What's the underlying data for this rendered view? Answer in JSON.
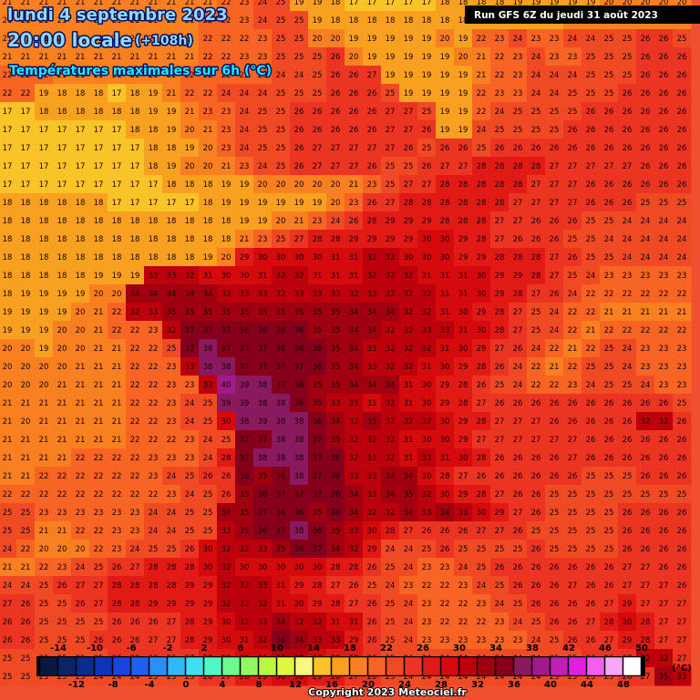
{
  "header": {
    "date": "lundi 4 septembre 2023",
    "time": "20:00 locale",
    "lead": "(+108h)",
    "subtitle": "Températures maximales sur 6h (°C)",
    "run": "Run GFS 6Z du jeudi 31 août 2023"
  },
  "grid": {
    "values": [
      [
        21,
        21,
        21,
        21,
        21,
        21,
        21,
        21,
        21,
        21,
        21,
        21,
        22,
        23,
        24,
        25,
        19,
        19,
        18,
        17,
        17,
        17,
        17,
        17,
        18,
        18,
        18,
        18,
        19,
        19,
        19,
        19,
        19,
        20,
        20,
        20,
        20,
        20
      ],
      [
        21,
        21,
        21,
        21,
        21,
        21,
        21,
        21,
        21,
        21,
        21,
        22,
        22,
        23,
        24,
        25,
        25,
        19,
        18,
        18,
        18,
        18,
        18,
        18,
        18,
        18,
        19,
        19,
        19,
        19,
        19,
        20,
        20,
        20,
        20,
        20,
        20,
        20
      ],
      [
        21,
        21,
        21,
        21,
        21,
        21,
        21,
        21,
        21,
        21,
        21,
        22,
        22,
        22,
        23,
        25,
        25,
        20,
        20,
        19,
        19,
        19,
        19,
        19,
        20,
        19,
        22,
        23,
        24,
        23,
        23,
        24,
        24,
        25,
        25,
        26,
        26,
        25
      ],
      [
        21,
        21,
        21,
        21,
        21,
        21,
        21,
        21,
        21,
        21,
        21,
        22,
        22,
        23,
        23,
        25,
        25,
        25,
        26,
        20,
        19,
        19,
        19,
        19,
        19,
        20,
        21,
        22,
        23,
        24,
        23,
        23,
        25,
        25,
        25,
        26,
        26,
        26
      ],
      [
        22,
        22,
        22,
        21,
        21,
        21,
        21,
        21,
        21,
        21,
        22,
        22,
        22,
        22,
        23,
        24,
        24,
        25,
        26,
        26,
        27,
        19,
        19,
        19,
        19,
        19,
        21,
        22,
        23,
        24,
        24,
        24,
        25,
        25,
        25,
        26,
        26,
        26
      ],
      [
        22,
        22,
        19,
        18,
        18,
        18,
        17,
        18,
        19,
        21,
        22,
        22,
        24,
        24,
        24,
        25,
        25,
        25,
        26,
        26,
        26,
        25,
        19,
        19,
        19,
        19,
        22,
        23,
        23,
        24,
        24,
        25,
        25,
        25,
        26,
        26,
        26,
        26
      ],
      [
        17,
        17,
        18,
        18,
        18,
        18,
        18,
        18,
        19,
        19,
        21,
        23,
        23,
        24,
        25,
        25,
        26,
        26,
        26,
        26,
        26,
        27,
        27,
        25,
        19,
        19,
        22,
        24,
        25,
        25,
        25,
        25,
        26,
        26,
        26,
        26,
        26,
        26
      ],
      [
        17,
        17,
        17,
        17,
        17,
        17,
        17,
        18,
        18,
        19,
        20,
        21,
        23,
        24,
        25,
        25,
        26,
        26,
        26,
        26,
        26,
        27,
        27,
        26,
        19,
        19,
        24,
        25,
        25,
        25,
        25,
        26,
        26,
        26,
        26,
        26,
        26,
        26
      ],
      [
        17,
        17,
        17,
        17,
        17,
        17,
        17,
        17,
        18,
        18,
        19,
        20,
        23,
        24,
        25,
        25,
        26,
        27,
        27,
        27,
        27,
        27,
        26,
        25,
        26,
        26,
        25,
        26,
        26,
        26,
        26,
        26,
        26,
        26,
        26,
        26,
        26,
        26
      ],
      [
        17,
        17,
        17,
        17,
        17,
        17,
        17,
        17,
        18,
        19,
        20,
        20,
        21,
        23,
        24,
        25,
        26,
        27,
        27,
        27,
        26,
        25,
        25,
        26,
        27,
        27,
        28,
        28,
        28,
        28,
        27,
        27,
        27,
        27,
        27,
        26,
        26,
        26
      ],
      [
        17,
        17,
        17,
        17,
        17,
        17,
        17,
        17,
        17,
        18,
        18,
        18,
        19,
        19,
        20,
        20,
        20,
        20,
        20,
        21,
        23,
        25,
        27,
        27,
        28,
        28,
        28,
        28,
        28,
        27,
        27,
        27,
        26,
        26,
        26,
        26,
        26,
        26
      ],
      [
        18,
        18,
        18,
        18,
        18,
        18,
        17,
        17,
        17,
        17,
        17,
        18,
        19,
        19,
        19,
        19,
        19,
        19,
        20,
        23,
        26,
        27,
        28,
        28,
        28,
        28,
        28,
        28,
        27,
        27,
        27,
        27,
        26,
        26,
        26,
        25,
        25,
        25
      ],
      [
        18,
        18,
        18,
        18,
        18,
        18,
        18,
        18,
        18,
        18,
        18,
        18,
        18,
        19,
        19,
        20,
        21,
        23,
        24,
        26,
        28,
        29,
        29,
        29,
        28,
        28,
        28,
        27,
        27,
        26,
        26,
        26,
        25,
        25,
        24,
        24,
        24,
        24
      ],
      [
        18,
        18,
        18,
        18,
        18,
        18,
        18,
        18,
        18,
        18,
        18,
        18,
        18,
        21,
        23,
        25,
        27,
        28,
        28,
        29,
        29,
        29,
        29,
        30,
        30,
        29,
        28,
        27,
        26,
        26,
        26,
        25,
        25,
        24,
        24,
        24,
        24,
        24
      ],
      [
        18,
        18,
        18,
        18,
        18,
        18,
        18,
        18,
        18,
        18,
        18,
        19,
        20,
        29,
        30,
        30,
        30,
        30,
        31,
        31,
        32,
        32,
        30,
        30,
        30,
        29,
        29,
        28,
        28,
        28,
        27,
        26,
        25,
        25,
        24,
        24,
        24,
        24
      ],
      [
        18,
        18,
        18,
        18,
        18,
        19,
        19,
        19,
        33,
        33,
        32,
        31,
        30,
        30,
        31,
        32,
        32,
        31,
        31,
        31,
        32,
        32,
        32,
        31,
        31,
        31,
        30,
        29,
        29,
        28,
        27,
        25,
        24,
        23,
        23,
        23,
        23,
        23
      ],
      [
        18,
        19,
        19,
        19,
        19,
        20,
        20,
        34,
        34,
        34,
        34,
        34,
        33,
        33,
        33,
        32,
        33,
        33,
        33,
        32,
        33,
        32,
        32,
        32,
        31,
        31,
        30,
        29,
        28,
        27,
        26,
        24,
        22,
        22,
        22,
        22,
        22,
        22
      ],
      [
        19,
        19,
        19,
        19,
        20,
        21,
        22,
        32,
        33,
        35,
        35,
        35,
        35,
        35,
        35,
        35,
        35,
        35,
        35,
        34,
        34,
        34,
        32,
        32,
        31,
        30,
        29,
        28,
        27,
        25,
        24,
        22,
        22,
        21,
        21,
        21,
        21,
        21
      ],
      [
        19,
        19,
        19,
        20,
        20,
        21,
        22,
        22,
        23,
        32,
        37,
        37,
        37,
        36,
        36,
        36,
        36,
        35,
        35,
        34,
        34,
        32,
        32,
        33,
        33,
        31,
        30,
        28,
        27,
        25,
        24,
        22,
        21,
        22,
        22,
        22,
        22,
        22
      ],
      [
        20,
        20,
        19,
        20,
        20,
        21,
        21,
        22,
        22,
        25,
        37,
        38,
        37,
        37,
        37,
        36,
        36,
        36,
        35,
        34,
        33,
        32,
        32,
        32,
        31,
        30,
        29,
        27,
        26,
        24,
        22,
        21,
        22,
        25,
        24,
        23,
        23,
        23
      ],
      [
        20,
        20,
        20,
        20,
        21,
        21,
        21,
        22,
        22,
        23,
        33,
        38,
        38,
        37,
        37,
        37,
        37,
        36,
        35,
        34,
        33,
        32,
        32,
        31,
        30,
        29,
        28,
        26,
        24,
        22,
        21,
        22,
        25,
        25,
        24,
        23,
        23,
        23
      ],
      [
        20,
        20,
        20,
        21,
        21,
        21,
        21,
        22,
        22,
        23,
        23,
        33,
        40,
        39,
        38,
        37,
        36,
        35,
        35,
        34,
        34,
        34,
        31,
        30,
        29,
        28,
        26,
        25,
        24,
        22,
        22,
        23,
        24,
        25,
        25,
        24,
        23,
        23
      ],
      [
        21,
        21,
        21,
        21,
        21,
        21,
        21,
        22,
        22,
        23,
        24,
        25,
        39,
        39,
        38,
        38,
        36,
        35,
        33,
        33,
        31,
        32,
        31,
        30,
        29,
        28,
        27,
        26,
        26,
        26,
        26,
        26,
        26,
        26,
        26,
        26,
        26,
        25
      ],
      [
        21,
        20,
        21,
        21,
        21,
        21,
        21,
        22,
        22,
        23,
        24,
        25,
        30,
        38,
        39,
        38,
        38,
        36,
        34,
        32,
        35,
        32,
        32,
        32,
        30,
        29,
        28,
        27,
        27,
        27,
        26,
        26,
        26,
        26,
        26,
        32,
        32,
        26
      ],
      [
        21,
        21,
        21,
        21,
        21,
        21,
        21,
        22,
        22,
        22,
        23,
        24,
        25,
        37,
        37,
        38,
        38,
        37,
        35,
        32,
        32,
        32,
        31,
        30,
        30,
        29,
        27,
        27,
        27,
        27,
        27,
        27,
        26,
        26,
        26,
        26,
        26,
        26
      ],
      [
        21,
        21,
        21,
        21,
        22,
        22,
        22,
        22,
        23,
        23,
        23,
        24,
        28,
        37,
        38,
        38,
        38,
        37,
        36,
        32,
        33,
        32,
        31,
        33,
        31,
        30,
        28,
        26,
        26,
        26,
        26,
        27,
        26,
        26,
        26,
        26,
        26,
        26
      ],
      [
        21,
        21,
        22,
        22,
        22,
        22,
        22,
        22,
        23,
        24,
        25,
        26,
        26,
        36,
        35,
        36,
        38,
        37,
        36,
        33,
        33,
        34,
        34,
        30,
        28,
        27,
        26,
        26,
        26,
        26,
        26,
        26,
        25,
        25,
        25,
        26,
        26,
        26
      ],
      [
        22,
        22,
        22,
        22,
        22,
        22,
        22,
        22,
        22,
        23,
        24,
        25,
        26,
        35,
        36,
        37,
        37,
        37,
        36,
        34,
        33,
        34,
        35,
        32,
        30,
        29,
        28,
        27,
        26,
        26,
        25,
        25,
        25,
        25,
        25,
        25,
        25,
        25
      ],
      [
        25,
        25,
        23,
        23,
        23,
        23,
        23,
        23,
        24,
        24,
        25,
        25,
        34,
        35,
        37,
        36,
        36,
        35,
        36,
        34,
        32,
        32,
        34,
        33,
        34,
        33,
        30,
        29,
        27,
        26,
        25,
        25,
        25,
        25,
        26,
        26,
        26,
        26
      ],
      [
        25,
        25,
        21,
        21,
        22,
        22,
        23,
        23,
        24,
        24,
        25,
        25,
        33,
        35,
        36,
        37,
        38,
        36,
        35,
        33,
        30,
        28,
        27,
        26,
        26,
        26,
        27,
        27,
        26,
        25,
        25,
        25,
        25,
        25,
        26,
        26,
        26,
        26
      ],
      [
        24,
        22,
        20,
        20,
        20,
        22,
        23,
        24,
        25,
        25,
        26,
        30,
        32,
        32,
        33,
        35,
        36,
        37,
        34,
        32,
        29,
        24,
        24,
        25,
        26,
        25,
        25,
        25,
        25,
        26,
        25,
        25,
        25,
        25,
        26,
        26,
        26,
        26
      ],
      [
        21,
        21,
        22,
        23,
        24,
        25,
        26,
        27,
        28,
        28,
        28,
        30,
        32,
        30,
        30,
        30,
        30,
        30,
        28,
        28,
        26,
        25,
        24,
        23,
        23,
        24,
        25,
        26,
        26,
        26,
        26,
        26,
        26,
        26,
        27,
        27,
        26,
        26
      ],
      [
        24,
        24,
        25,
        26,
        27,
        27,
        28,
        28,
        28,
        28,
        29,
        29,
        32,
        32,
        33,
        31,
        29,
        28,
        27,
        26,
        25,
        24,
        23,
        22,
        22,
        23,
        24,
        25,
        26,
        26,
        26,
        27,
        26,
        26,
        27,
        27,
        27,
        26
      ],
      [
        27,
        26,
        25,
        25,
        26,
        27,
        28,
        28,
        29,
        29,
        29,
        29,
        32,
        32,
        32,
        31,
        30,
        29,
        28,
        27,
        26,
        25,
        24,
        23,
        22,
        22,
        23,
        24,
        25,
        26,
        26,
        26,
        26,
        27,
        29,
        27,
        27,
        27
      ],
      [
        26,
        26,
        25,
        25,
        25,
        25,
        26,
        26,
        26,
        27,
        28,
        29,
        30,
        32,
        33,
        34,
        32,
        32,
        31,
        31,
        26,
        25,
        24,
        23,
        22,
        22,
        22,
        23,
        24,
        25,
        26,
        26,
        27,
        28,
        30,
        28,
        27,
        27
      ],
      [
        26,
        26,
        25,
        25,
        25,
        26,
        26,
        26,
        27,
        27,
        28,
        29,
        30,
        31,
        32,
        36,
        34,
        33,
        33,
        29,
        26,
        25,
        24,
        23,
        23,
        23,
        23,
        23,
        23,
        24,
        25,
        26,
        26,
        27,
        29,
        28,
        27,
        27
      ],
      [
        25,
        25,
        25,
        25,
        25,
        25,
        26,
        26,
        26,
        26,
        27,
        28,
        29,
        30,
        31,
        32,
        32,
        30,
        29,
        28,
        26,
        25,
        24,
        24,
        24,
        24,
        24,
        24,
        24,
        24,
        25,
        25,
        26,
        26,
        27,
        32,
        32,
        27
      ],
      [
        25,
        25,
        25,
        25,
        25,
        24,
        24,
        24,
        25,
        25,
        25,
        26,
        27,
        28,
        29,
        30,
        30,
        29,
        28,
        27,
        26,
        25,
        24,
        24,
        24,
        24,
        24,
        24,
        24,
        24,
        25,
        25,
        25,
        25,
        26,
        27,
        35,
        33
      ]
    ]
  },
  "legend": {
    "unit": "(°C)",
    "values": [
      -14,
      -12,
      -10,
      -8,
      -6,
      -4,
      -2,
      0,
      2,
      4,
      6,
      8,
      10,
      12,
      14,
      16,
      18,
      20,
      22,
      24,
      26,
      28,
      30,
      32,
      34,
      36,
      38,
      40,
      42,
      44,
      46,
      48,
      50
    ],
    "colors": [
      "#0a1840",
      "#0a2468",
      "#0a2c90",
      "#1034b8",
      "#1844e0",
      "#2060f0",
      "#2890f8",
      "#30b8f8",
      "#40e0f0",
      "#50f8c8",
      "#70f890",
      "#90f860",
      "#b8f840",
      "#e0f840",
      "#f8f880",
      "#f8c428",
      "#f8a020",
      "#f88020",
      "#f86424",
      "#f04a24",
      "#ec3422",
      "#e21a16",
      "#d40a0c",
      "#bc000c",
      "#a00010",
      "#86001c",
      "#8a1a60",
      "#a01a8a",
      "#c020b8",
      "#e020e0",
      "#f060f0",
      "#f8a8f8",
      "#ffffff"
    ]
  },
  "footer": {
    "copyright": "Copyright 2023 Meteociel.fr"
  }
}
